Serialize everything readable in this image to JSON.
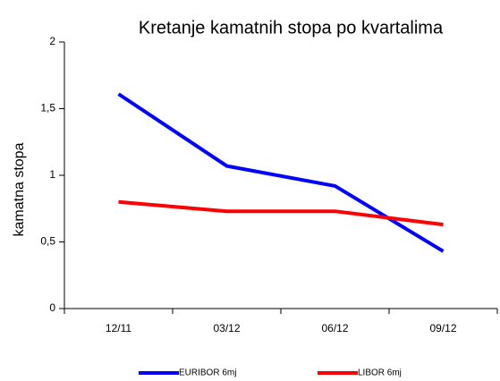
{
  "chart_data": {
    "type": "line",
    "title": "Kretanje kamatnih stopa po kvartalima",
    "ylabel": "kamatna  stopa",
    "categories": [
      "12/11",
      "03/12",
      "06/12",
      "09/12"
    ],
    "series": [
      {
        "name": "EURIBOR 6mj",
        "color": "#0000ff",
        "values": [
          1.61,
          1.07,
          0.92,
          0.43
        ]
      },
      {
        "name": "LIBOR 6mj",
        "color": "#ff0000",
        "values": [
          0.8,
          0.73,
          0.73,
          0.63
        ]
      }
    ],
    "ylim": [
      0,
      2
    ],
    "yticks": [
      0,
      {
        "value": 0.5,
        "label": "0,5"
      },
      1,
      {
        "value": 1.5,
        "label": "1,5"
      },
      2
    ],
    "grid": false,
    "legend": "bottom"
  }
}
